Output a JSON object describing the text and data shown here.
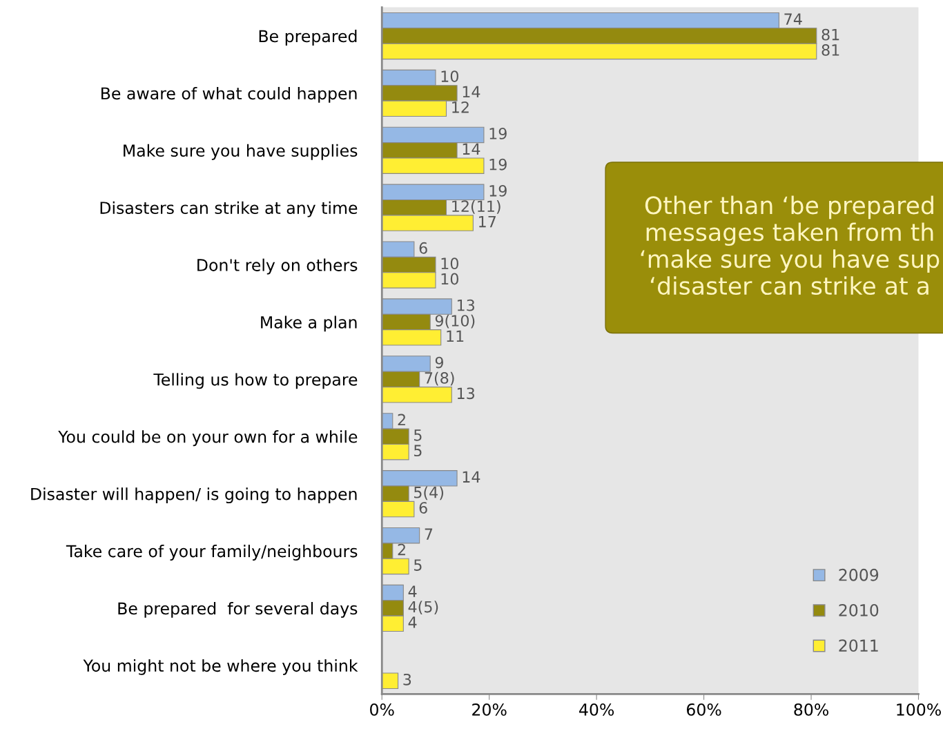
{
  "chart_data": {
    "type": "bar",
    "orientation": "horizontal",
    "categories": [
      "Be prepared",
      "Be aware of what could happen",
      "Make sure you have supplies",
      "Disasters can strike at any time",
      "Don't rely on others",
      "Make a plan",
      "Telling us how to prepare",
      "You could be on your own for a while",
      "Disaster will happen/ is going to happen",
      "Take care of your family/neighbours",
      "Be prepared  for several days",
      "You might not be where you think"
    ],
    "series": [
      {
        "name": "2009",
        "color": "#95b8e5",
        "values": [
          74,
          10,
          19,
          19,
          6,
          13,
          9,
          2,
          14,
          7,
          4,
          null
        ],
        "value_labels": [
          "74",
          "10",
          "19",
          "19",
          "6",
          "13",
          "9",
          "2",
          "14",
          "7",
          "4",
          null
        ]
      },
      {
        "name": "2010",
        "color": "#948a0f",
        "values": [
          81,
          14,
          14,
          12,
          10,
          9,
          7,
          5,
          5,
          2,
          4,
          null
        ],
        "value_labels": [
          "81",
          "14",
          "14",
          "12(11)",
          "10",
          "9(10)",
          "7(8)",
          "5",
          "5(4)",
          "2",
          "4(5)",
          null
        ]
      },
      {
        "name": "2011",
        "color": "#ffee33",
        "values": [
          81,
          12,
          19,
          17,
          10,
          11,
          13,
          5,
          6,
          5,
          4,
          3
        ],
        "value_labels": [
          "81",
          "12",
          "19",
          "17",
          "10",
          "11",
          "13",
          "5",
          "6",
          "5",
          "4",
          "3"
        ]
      }
    ],
    "xlim": [
      0,
      100
    ],
    "xticks": [
      {
        "value": 0,
        "label": "0%"
      },
      {
        "value": 20,
        "label": "20%"
      },
      {
        "value": 40,
        "label": "40%"
      },
      {
        "value": 60,
        "label": "60%"
      },
      {
        "value": 80,
        "label": "80%"
      },
      {
        "value": 100,
        "label": "100%"
      }
    ],
    "grid": false,
    "legend": "bottom right",
    "annotations": [
      "Other than ‘be prepared\nmessages taken from th\n‘make sure you have sup\n‘disaster can strike at a"
    ]
  }
}
